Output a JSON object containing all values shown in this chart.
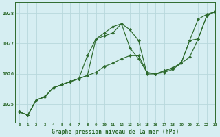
{
  "background_color": "#d6eef2",
  "line_color": "#2d6a2d",
  "grid_color": "#b8d8dc",
  "xlabel": "Graphe pression niveau de la mer (hPa)",
  "ylim": [
    1024.4,
    1028.35
  ],
  "xlim": [
    -0.5,
    23
  ],
  "yticks": [
    1025,
    1026,
    1027,
    1028
  ],
  "xticks": [
    0,
    1,
    2,
    3,
    4,
    5,
    6,
    7,
    8,
    9,
    10,
    11,
    12,
    13,
    14,
    15,
    16,
    17,
    18,
    19,
    20,
    21,
    22,
    23
  ],
  "series": [
    [
      1024.75,
      1024.65,
      1025.15,
      1025.25,
      1025.55,
      1025.65,
      1025.75,
      1025.85,
      1025.95,
      1026.05,
      1026.25,
      1026.35,
      1026.5,
      1026.6,
      1026.6,
      1026.05,
      1026.0,
      1026.1,
      1026.2,
      1026.35,
      1026.55,
      1027.15,
      1027.9,
      1028.05
    ],
    [
      1024.75,
      1024.65,
      1025.15,
      1025.25,
      1025.55,
      1025.65,
      1025.75,
      1025.85,
      1026.6,
      1027.15,
      1027.35,
      1027.55,
      1027.65,
      1027.45,
      1027.1,
      1026.0,
      1026.0,
      1026.05,
      1026.15,
      1026.35,
      1027.1,
      1027.8,
      1027.95,
      1028.05
    ],
    [
      1024.75,
      1024.65,
      1025.15,
      1025.25,
      1025.55,
      1025.65,
      1025.75,
      1025.85,
      1025.95,
      1027.15,
      1027.25,
      1027.35,
      1027.65,
      1026.85,
      1026.5,
      1026.05,
      1026.0,
      1026.1,
      1026.2,
      1026.35,
      1027.1,
      1027.15,
      1027.9,
      1028.05
    ]
  ]
}
